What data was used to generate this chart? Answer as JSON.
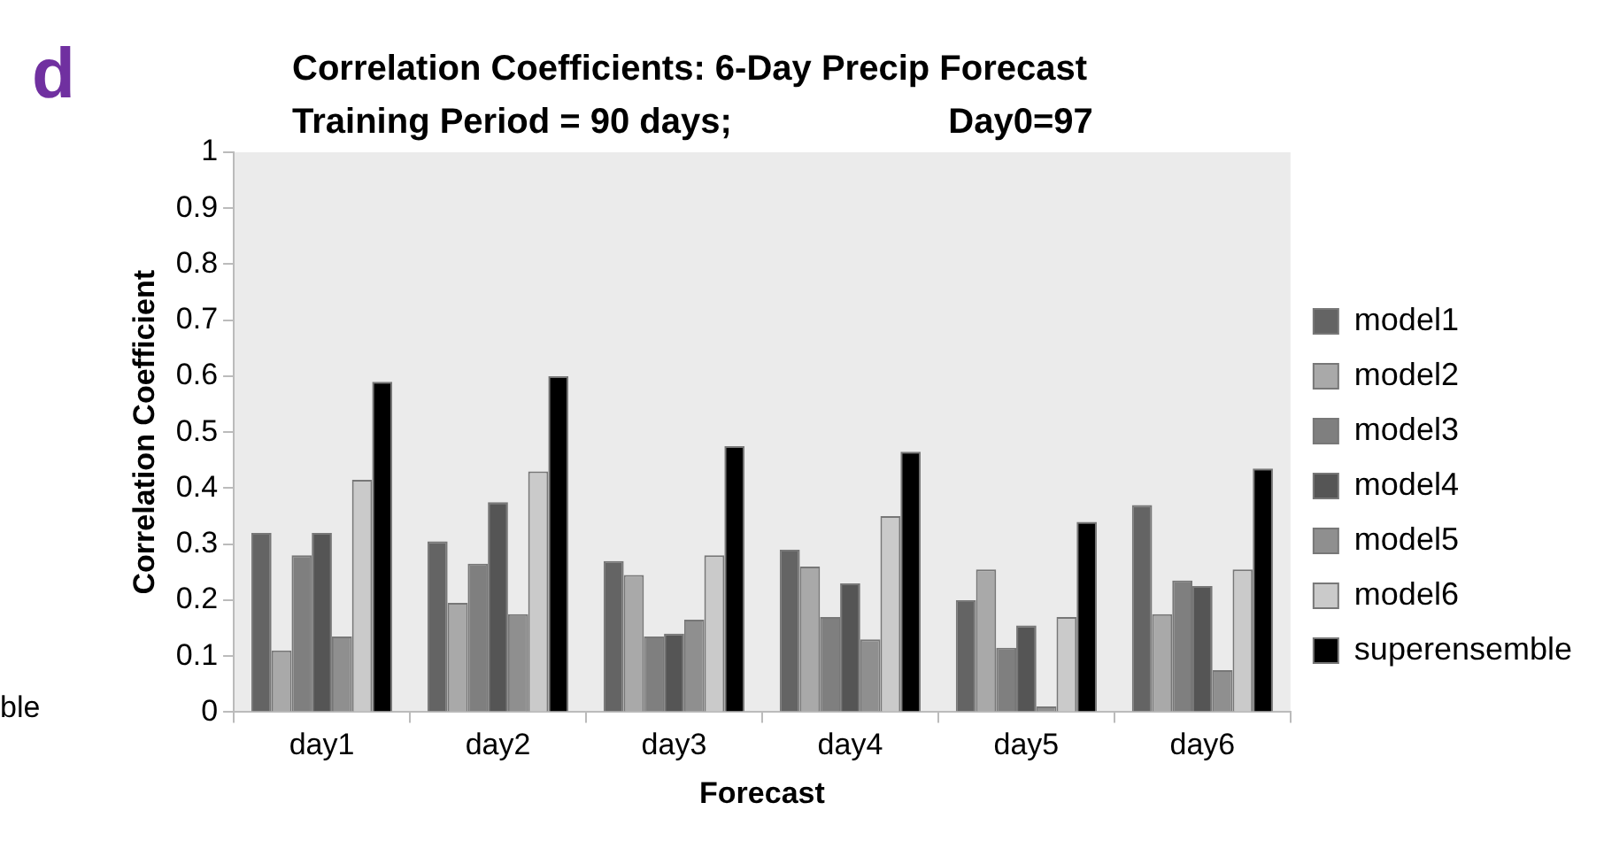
{
  "chart_data": {
    "type": "bar",
    "title": "Correlation Coefficients: 6-Day Precip Forecast",
    "subtitle": "Training Period = 90 days;                      Day0=97",
    "xlabel": "Forecast",
    "ylabel": "Correlation Coefficient",
    "annotations": [
      "d",
      "ble"
    ],
    "categories": [
      "day1",
      "day2",
      "day3",
      "day4",
      "day5",
      "day6"
    ],
    "series": [
      {
        "name": "model1",
        "color": "#646464",
        "values": [
          0.32,
          0.305,
          0.27,
          0.29,
          0.2,
          0.37
        ]
      },
      {
        "name": "model2",
        "color": "#a9a9a9",
        "values": [
          0.11,
          0.195,
          0.245,
          0.26,
          0.255,
          0.175
        ]
      },
      {
        "name": "model3",
        "color": "#7f7f7f",
        "values": [
          0.28,
          0.265,
          0.135,
          0.17,
          0.115,
          0.235
        ]
      },
      {
        "name": "model4",
        "color": "#555555",
        "values": [
          0.32,
          0.375,
          0.14,
          0.23,
          0.155,
          0.225
        ]
      },
      {
        "name": "model5",
        "color": "#8f8f8f",
        "values": [
          0.135,
          0.175,
          0.165,
          0.13,
          0.01,
          0.075
        ]
      },
      {
        "name": "model6",
        "color": "#cacaca",
        "values": [
          0.415,
          0.43,
          0.28,
          0.35,
          0.17,
          0.255
        ]
      },
      {
        "name": "superensemble",
        "color": "#000000",
        "values": [
          0.59,
          0.6,
          0.475,
          0.465,
          0.34,
          0.435
        ]
      }
    ],
    "ylim": [
      0,
      1
    ],
    "yticks": [
      0,
      0.1,
      0.2,
      0.3,
      0.4,
      0.5,
      0.6,
      0.7,
      0.8,
      0.9,
      1
    ],
    "grid": false,
    "legend": "right"
  }
}
